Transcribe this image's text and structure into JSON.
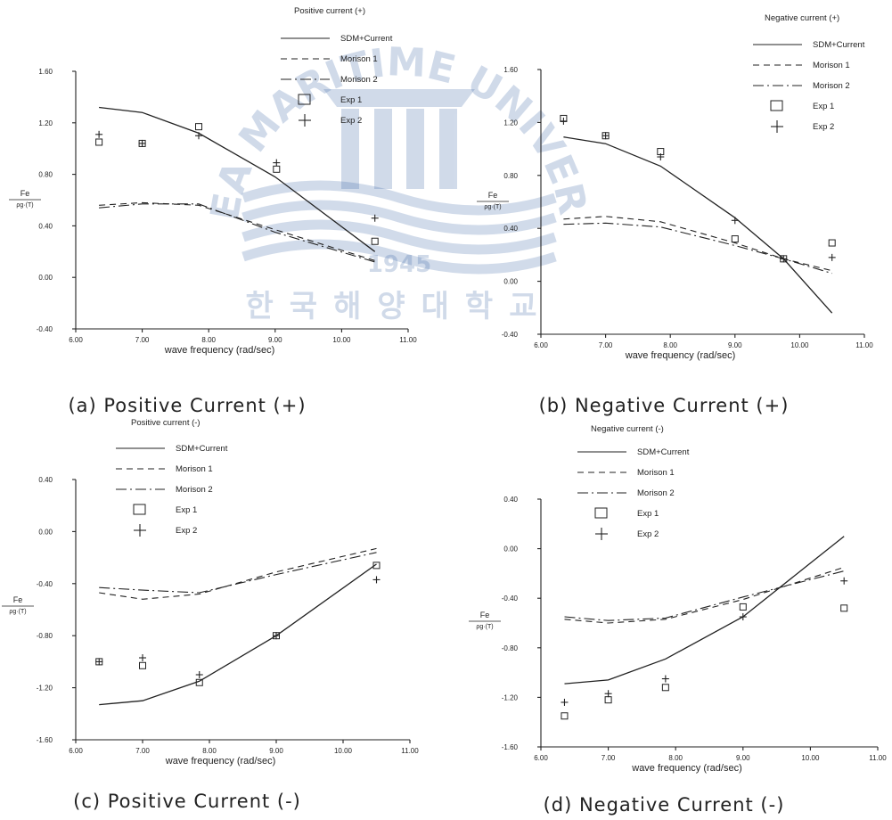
{
  "watermark": {
    "text": "KOREA MARITIME UNIVERSITY",
    "year": "1945",
    "korean": "한국해양대학교",
    "color": "#2c5aa0"
  },
  "legend_labels": [
    "SDM+Current",
    "Morison 1",
    "Morison 2",
    "Exp 1",
    "Exp 2"
  ],
  "chart_data": [
    {
      "type": "line",
      "title": "Positive current (+)",
      "caption": "(a) Positive Current (+)",
      "xlabel": "wave frequency (rad/sec)",
      "ylabel_num": "Fe",
      "ylabel_den": "ρg·(T)",
      "xlim": [
        6.0,
        11.0
      ],
      "ylim": [
        -0.4,
        1.6
      ],
      "xticks": [
        "6.00",
        "7.00",
        "8.00",
        "9.00",
        "10.00",
        "11.00"
      ],
      "yticks": [
        "-0.40",
        "0.00",
        "0.40",
        "0.80",
        "1.20",
        "1.60"
      ],
      "x": [
        6.35,
        7.0,
        7.85,
        9.0,
        10.5
      ],
      "series": [
        {
          "name": "SDM+Current",
          "style": "solid",
          "values": [
            1.32,
            1.28,
            1.12,
            0.78,
            0.2
          ]
        },
        {
          "name": "Morison 1",
          "style": "dashed",
          "values": [
            0.56,
            0.58,
            0.56,
            0.37,
            0.13
          ]
        },
        {
          "name": "Morison 2",
          "style": "dashdot",
          "values": [
            0.54,
            0.57,
            0.57,
            0.35,
            0.12
          ]
        }
      ],
      "points": [
        {
          "name": "Exp 1",
          "marker": "square",
          "x": [
            6.35,
            7.0,
            7.85,
            9.02,
            10.5
          ],
          "y": [
            1.05,
            1.04,
            1.17,
            0.84,
            0.28
          ]
        },
        {
          "name": "Exp 2",
          "marker": "plus",
          "x": [
            6.35,
            7.0,
            7.85,
            9.02,
            10.5
          ],
          "y": [
            1.11,
            1.04,
            1.1,
            0.89,
            0.46
          ]
        }
      ]
    },
    {
      "type": "line",
      "title": "Negative current (+)",
      "caption": "(b) Negative Current (+)",
      "xlabel": "wave frequency (rad/sec)",
      "ylabel_num": "Fe",
      "ylabel_den": "ρg·(T)",
      "xlim": [
        6.0,
        11.0
      ],
      "ylim": [
        -0.4,
        1.6
      ],
      "xticks": [
        "6.00",
        "7.00",
        "8.00",
        "9.00",
        "10.00",
        "11.00"
      ],
      "yticks": [
        "-0.40",
        "0.00",
        "0.40",
        "0.80",
        "1.20",
        "1.60"
      ],
      "x": [
        6.35,
        7.0,
        7.85,
        9.0,
        9.75,
        10.5
      ],
      "series": [
        {
          "name": "SDM+Current",
          "style": "solid",
          "values": [
            1.09,
            1.04,
            0.87,
            0.48,
            0.17,
            -0.24
          ]
        },
        {
          "name": "Morison 1",
          "style": "dashed",
          "values": [
            0.47,
            0.49,
            0.45,
            0.29,
            0.17,
            0.08
          ]
        },
        {
          "name": "Morison 2",
          "style": "dashdot",
          "values": [
            0.43,
            0.44,
            0.41,
            0.27,
            0.17,
            0.06
          ]
        }
      ],
      "points": [
        {
          "name": "Exp 1",
          "marker": "square",
          "x": [
            6.35,
            7.0,
            7.85,
            9.0,
            9.75,
            10.5
          ],
          "y": [
            1.23,
            1.1,
            0.98,
            0.32,
            0.17,
            0.29
          ]
        },
        {
          "name": "Exp 2",
          "marker": "plus",
          "x": [
            6.35,
            7.0,
            7.85,
            9.0,
            9.75,
            10.5
          ],
          "y": [
            1.21,
            1.1,
            0.94,
            0.46,
            0.17,
            0.18
          ]
        }
      ]
    },
    {
      "type": "line",
      "title": "Positive current (-)",
      "caption": "(c) Positive Current (-)",
      "xlabel": "wave frequency (rad/sec)",
      "ylabel_num": "Fe",
      "ylabel_den": "ρg·(T)",
      "xlim": [
        6.0,
        11.0
      ],
      "ylim": [
        -1.6,
        0.4
      ],
      "xticks": [
        "6.00",
        "7.00",
        "8.00",
        "9.00",
        "10.00",
        "11.00"
      ],
      "yticks": [
        "-1.60",
        "-1.20",
        "-0.80",
        "-0.40",
        "0.00",
        "0.40"
      ],
      "x": [
        6.35,
        7.0,
        7.85,
        9.0,
        10.5
      ],
      "series": [
        {
          "name": "SDM+Current",
          "style": "solid",
          "values": [
            -1.33,
            -1.3,
            -1.15,
            -0.8,
            -0.25
          ]
        },
        {
          "name": "Morison 1",
          "style": "dashed",
          "values": [
            -0.47,
            -0.52,
            -0.48,
            -0.31,
            -0.13
          ]
        },
        {
          "name": "Morison 2",
          "style": "dashdot",
          "values": [
            -0.43,
            -0.45,
            -0.47,
            -0.33,
            -0.16
          ]
        }
      ],
      "points": [
        {
          "name": "Exp 1",
          "marker": "square",
          "x": [
            6.35,
            7.0,
            7.85,
            9.0,
            10.5
          ],
          "y": [
            -1.0,
            -1.03,
            -1.16,
            -0.8,
            -0.26
          ]
        },
        {
          "name": "Exp 2",
          "marker": "plus",
          "x": [
            6.35,
            7.0,
            7.85,
            9.0,
            10.5
          ],
          "y": [
            -1.0,
            -0.97,
            -1.1,
            -0.8,
            -0.37
          ]
        }
      ]
    },
    {
      "type": "line",
      "title": "Negative current (-)",
      "caption": "(d) Negative Current (-)",
      "xlabel": "wave frequency (rad/sec)",
      "ylabel_num": "Fe",
      "ylabel_den": "ρg·(T)",
      "xlim": [
        6.0,
        11.0
      ],
      "ylim": [
        -1.6,
        0.4
      ],
      "xticks": [
        "6.00",
        "7.00",
        "8.00",
        "9.00",
        "10.00",
        "11.00"
      ],
      "yticks": [
        "-1.60",
        "-1.20",
        "-0.80",
        "-0.40",
        "0.00",
        "0.40"
      ],
      "x": [
        6.35,
        7.0,
        7.85,
        9.0,
        10.5
      ],
      "series": [
        {
          "name": "SDM+Current",
          "style": "solid",
          "values": [
            -1.09,
            -1.06,
            -0.89,
            -0.55,
            0.1
          ]
        },
        {
          "name": "Morison 1",
          "style": "dashed",
          "values": [
            -0.57,
            -0.6,
            -0.57,
            -0.41,
            -0.15
          ]
        },
        {
          "name": "Morison 2",
          "style": "dashdot",
          "values": [
            -0.55,
            -0.58,
            -0.56,
            -0.39,
            -0.18
          ]
        }
      ],
      "points": [
        {
          "name": "Exp 1",
          "marker": "square",
          "x": [
            6.35,
            7.0,
            7.85,
            9.0,
            10.5
          ],
          "y": [
            -1.35,
            -1.22,
            -1.12,
            -0.47,
            -0.48
          ]
        },
        {
          "name": "Exp 2",
          "marker": "plus",
          "x": [
            6.35,
            7.0,
            7.85,
            9.0,
            10.5
          ],
          "y": [
            -1.24,
            -1.17,
            -1.05,
            -0.55,
            -0.26
          ]
        }
      ]
    }
  ]
}
